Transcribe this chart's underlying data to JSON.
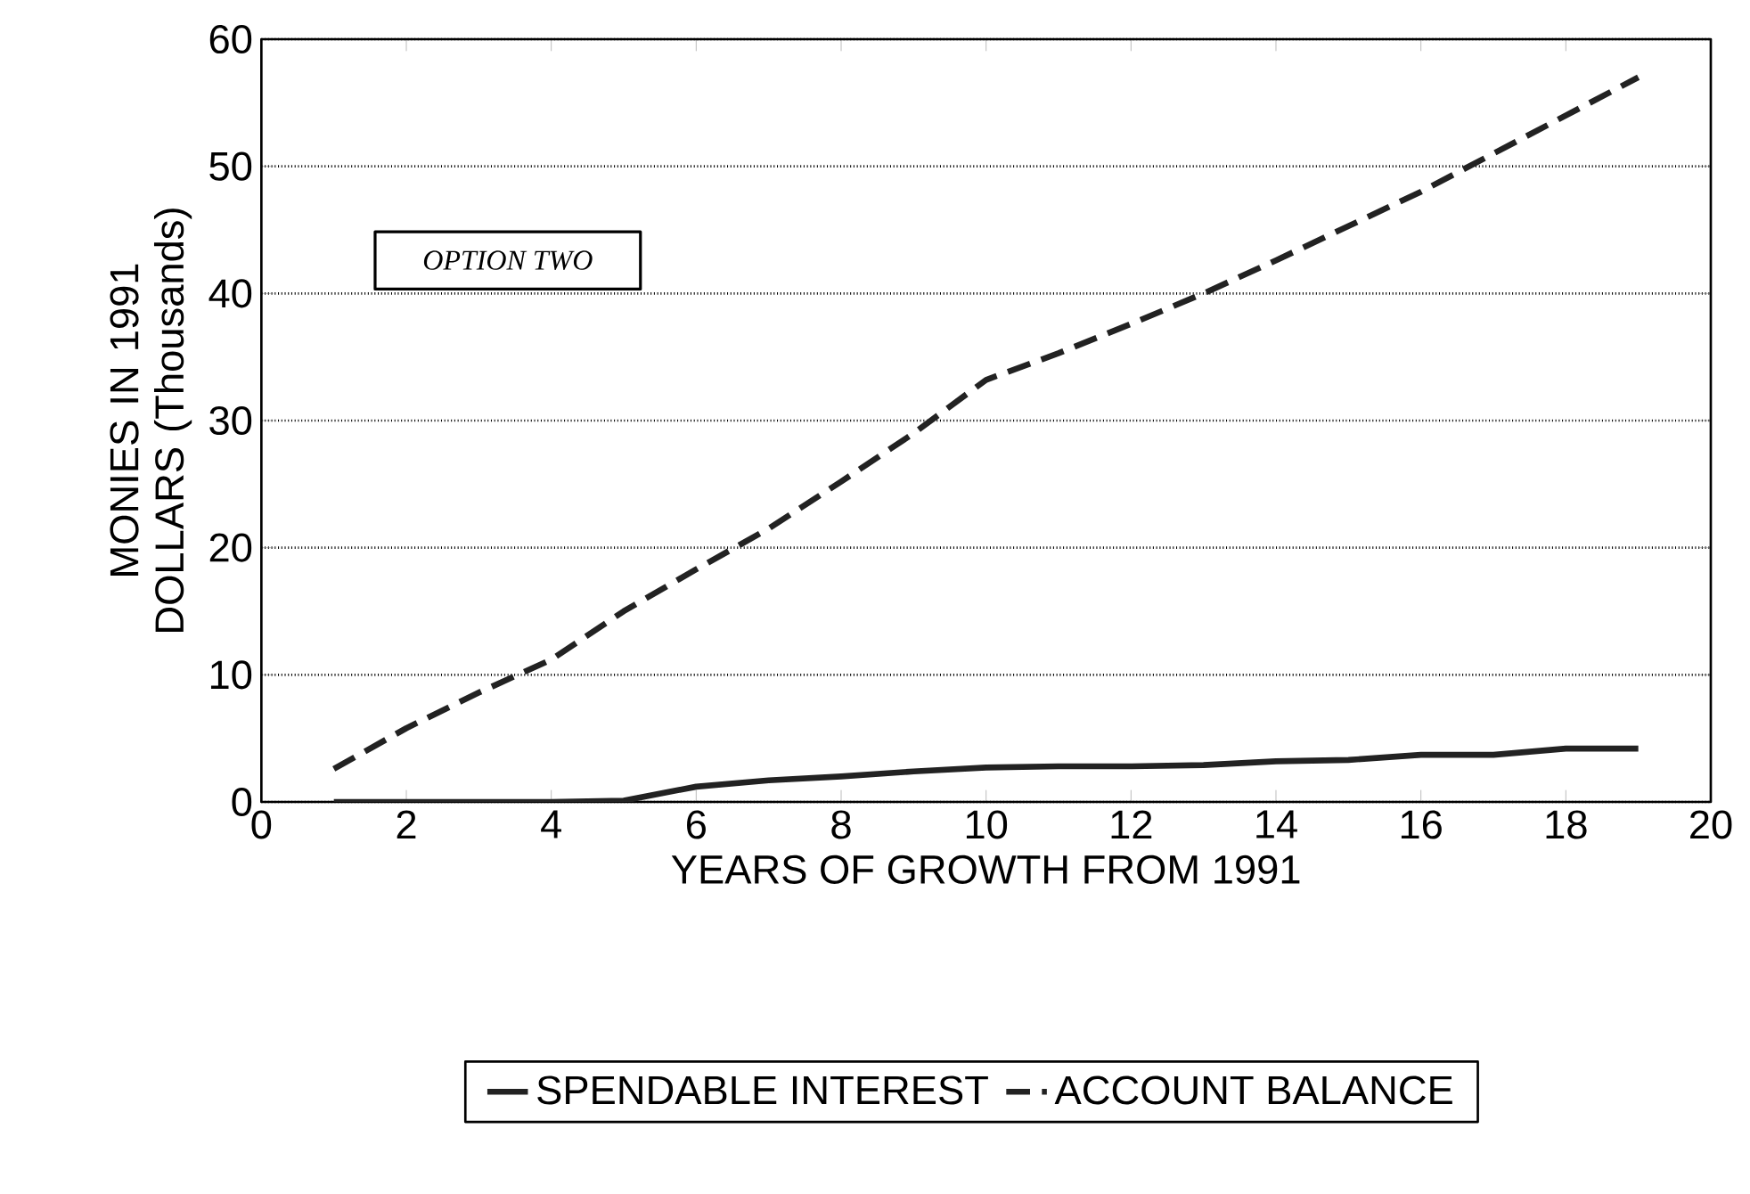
{
  "chart_data": {
    "type": "line",
    "xlabel": "YEARS OF GROWTH FROM 1991",
    "ylabel": "MONIES IN 1991 DOLLARS (Thousands)",
    "annotations": [
      "OPTION TWO"
    ],
    "series": [
      {
        "name": "SPENDABLE INTEREST",
        "color": "#222222",
        "line_style": "solid",
        "x": [
          1,
          2,
          3,
          4,
          5,
          6,
          7,
          8,
          9,
          10,
          11,
          12,
          13,
          14,
          15,
          16,
          17,
          18,
          19
        ],
        "values": [
          0,
          0,
          0,
          0,
          0.1,
          1.2,
          1.7,
          2.0,
          2.4,
          2.7,
          2.8,
          2.8,
          2.9,
          3.2,
          3.3,
          3.7,
          3.7,
          4.2,
          4.2
        ]
      },
      {
        "name": "ACCOUNT BALANCE",
        "color": "#222222",
        "line_style": "dashed",
        "x": [
          1,
          2,
          3,
          4,
          5,
          6,
          7,
          8,
          9,
          10,
          11,
          12,
          13,
          14,
          15,
          16,
          17,
          18,
          19
        ],
        "values": [
          2.6,
          5.8,
          8.6,
          11.2,
          15.0,
          18.3,
          21.5,
          25.2,
          29.0,
          33.2,
          35.3,
          37.6,
          40.0,
          42.6,
          45.3,
          48.0,
          51.0,
          54.0,
          57.0
        ]
      }
    ],
    "xlim": [
      0,
      20
    ],
    "xticks": [
      0,
      2,
      4,
      6,
      8,
      10,
      12,
      14,
      16,
      18,
      20
    ],
    "ylim": [
      0,
      60
    ],
    "yticks": [
      0,
      10,
      20,
      30,
      40,
      50,
      60
    ],
    "grid": "y",
    "legend": "bottom",
    "marker": "none"
  }
}
